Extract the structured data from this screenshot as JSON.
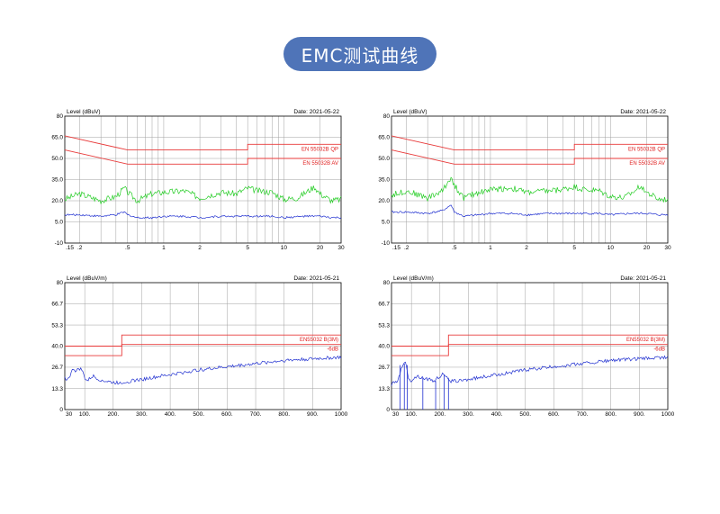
{
  "header": {
    "title": "EMC测试曲线"
  },
  "colors": {
    "pill": "#4f74b8",
    "limit": "#e83a3a",
    "qp_trace": "#22cc22",
    "av_trace": "#1f2fd0",
    "grid": "#a0a0a0"
  },
  "chart_data": [
    {
      "type": "line",
      "ylabel": "Level (dBuV)",
      "date": "Date: 2021-05-22",
      "x_scale": "log",
      "xlim": [
        0.15,
        30
      ],
      "ylim": [
        -10,
        80
      ],
      "yticks": [
        "80",
        "65.0",
        "50.0",
        "35.0",
        "20.0",
        "5.0",
        "-10"
      ],
      "ytick_values": [
        80,
        65,
        50,
        35,
        20,
        5,
        -10
      ],
      "xticks": [
        ".15",
        ".2",
        ".5",
        "1",
        "2",
        "5",
        "10",
        "20",
        "30"
      ],
      "xtick_values": [
        0.15,
        0.2,
        0.5,
        1,
        2,
        5,
        10,
        20,
        30
      ],
      "limits": [
        {
          "name": "EN 55032B QP",
          "x": [
            0.15,
            0.5,
            5,
            5,
            30
          ],
          "y": [
            66,
            56,
            56,
            60,
            60
          ]
        },
        {
          "name": "EN 55032B AV",
          "x": [
            0.15,
            0.5,
            5,
            5,
            30
          ],
          "y": [
            56,
            46,
            46,
            50,
            50
          ]
        }
      ],
      "series": [
        {
          "x": [
            0.15,
            0.2,
            0.3,
            0.4,
            0.47,
            0.5,
            0.6,
            0.8,
            1,
            1.5,
            2,
            3,
            4,
            5,
            6,
            8,
            10,
            13,
            16,
            18,
            20,
            25,
            30
          ],
          "y": [
            21,
            25,
            20,
            23,
            29,
            26,
            20,
            25,
            26,
            27,
            22,
            26,
            25,
            29,
            27,
            26,
            21,
            22,
            27,
            30,
            25,
            20,
            21
          ]
        },
        {
          "x": [
            0.15,
            0.2,
            0.3,
            0.4,
            0.47,
            0.5,
            0.6,
            0.8,
            1,
            1.5,
            2,
            3,
            5,
            8,
            10,
            15,
            20,
            25,
            30
          ],
          "y": [
            10,
            10,
            9,
            10,
            12,
            10,
            8,
            8,
            9,
            9,
            8,
            9,
            9,
            9,
            8,
            9,
            9,
            8,
            8
          ]
        }
      ]
    },
    {
      "type": "line",
      "ylabel": "Level (dBuV)",
      "date": "Date: 2021-05-22",
      "x_scale": "log",
      "xlim": [
        0.15,
        30
      ],
      "ylim": [
        -10,
        80
      ],
      "yticks": [
        "80",
        "65.0",
        "50.0",
        "35.0",
        "20.0",
        "5.0",
        "-10"
      ],
      "ytick_values": [
        80,
        65,
        50,
        35,
        20,
        5,
        -10
      ],
      "xticks": [
        ".15",
        ".2",
        ".5",
        "1",
        "2",
        "5",
        "10",
        "20",
        "30"
      ],
      "xtick_values": [
        0.15,
        0.2,
        0.5,
        1,
        2,
        5,
        10,
        20,
        30
      ],
      "limits": [
        {
          "name": "EN 55032B QP",
          "x": [
            0.15,
            0.5,
            5,
            5,
            30
          ],
          "y": [
            66,
            56,
            56,
            60,
            60
          ]
        },
        {
          "name": "EN 55032B AV",
          "x": [
            0.15,
            0.5,
            5,
            5,
            30
          ],
          "y": [
            56,
            46,
            46,
            50,
            50
          ]
        }
      ],
      "series": [
        {
          "x": [
            0.15,
            0.2,
            0.3,
            0.4,
            0.47,
            0.5,
            0.6,
            0.8,
            1,
            1.5,
            2,
            3,
            4,
            5,
            6,
            8,
            10,
            13,
            16,
            18,
            20,
            25,
            30
          ],
          "y": [
            24,
            27,
            22,
            27,
            37,
            31,
            22,
            26,
            28,
            29,
            26,
            27,
            28,
            30,
            28,
            27,
            23,
            22,
            27,
            31,
            26,
            21,
            21
          ]
        },
        {
          "x": [
            0.15,
            0.2,
            0.3,
            0.4,
            0.47,
            0.5,
            0.6,
            0.8,
            1,
            1.5,
            2,
            3,
            5,
            8,
            10,
            15,
            20,
            25,
            30
          ],
          "y": [
            12,
            12,
            11,
            13,
            17,
            12,
            9,
            10,
            11,
            11,
            10,
            11,
            11,
            11,
            10,
            11,
            11,
            10,
            10
          ]
        }
      ]
    },
    {
      "type": "line",
      "ylabel": "Level (dBuV/m)",
      "date": "Date: 2021-05-21",
      "x_scale": "linear",
      "xlim": [
        30,
        1000
      ],
      "ylim": [
        0,
        80
      ],
      "yticks": [
        "80",
        "66.7",
        "53.3",
        "40.0",
        "26.7",
        "13.3",
        "0"
      ],
      "ytick_values": [
        80,
        66.7,
        53.3,
        40,
        26.7,
        13.3,
        0
      ],
      "xticks": [
        "30",
        "100.",
        "200.",
        "300.",
        "400.",
        "500.",
        "600.",
        "700.",
        "800.",
        "900.",
        "1000"
      ],
      "xtick_values": [
        30,
        100,
        200,
        300,
        400,
        500,
        600,
        700,
        800,
        900,
        1000
      ],
      "limits": [
        {
          "name": "EN55032 B(3M)",
          "x": [
            30,
            230,
            230,
            1000
          ],
          "y": [
            40,
            40,
            47,
            47
          ]
        },
        {
          "name": "-6dB",
          "x": [
            30,
            230,
            230,
            1000
          ],
          "y": [
            34,
            34,
            41,
            41
          ]
        }
      ],
      "series": [
        {
          "x": [
            30,
            40,
            50,
            60,
            70,
            80,
            90,
            100,
            110,
            120,
            130,
            150,
            170,
            200,
            230,
            260,
            300,
            400,
            500,
            600,
            700,
            800,
            900,
            1000
          ],
          "y": [
            20,
            19,
            22,
            26,
            24,
            26,
            25,
            20,
            18,
            20,
            21,
            19,
            18,
            17,
            17,
            18,
            19,
            22,
            25,
            27,
            29,
            31,
            32,
            33
          ]
        }
      ]
    },
    {
      "type": "line",
      "ylabel": "Level (dBuV/m)",
      "date": "Date: 2021-05-21",
      "x_scale": "linear",
      "xlim": [
        30,
        1000
      ],
      "ylim": [
        0,
        80
      ],
      "yticks": [
        "80",
        "66.7",
        "53.3",
        "40.0",
        "26.7",
        "13.3",
        "0"
      ],
      "ytick_values": [
        80,
        66.7,
        53.3,
        40,
        26.7,
        13.3,
        0
      ],
      "xticks": [
        "30",
        "100.",
        "200.",
        "300.",
        "400.",
        "500.",
        "600.",
        "700.",
        "800.",
        "900.",
        "1000"
      ],
      "xtick_values": [
        30,
        100,
        200,
        300,
        400,
        500,
        600,
        700,
        800,
        900,
        1000
      ],
      "limits": [
        {
          "name": "EN55032 B(3M)",
          "x": [
            30,
            230,
            230,
            1000
          ],
          "y": [
            40,
            40,
            47,
            47
          ]
        },
        {
          "name": "-6dB",
          "x": [
            30,
            230,
            230,
            1000
          ],
          "y": [
            34,
            34,
            41,
            41
          ]
        }
      ],
      "series": [
        {
          "x": [
            30,
            40,
            50,
            60,
            70,
            80,
            90,
            100,
            110,
            120,
            140,
            160,
            180,
            200,
            215,
            230,
            260,
            300,
            400,
            500,
            600,
            700,
            800,
            900,
            1000
          ],
          "y": [
            16,
            17,
            18,
            23,
            29,
            29,
            20,
            18,
            20,
            21,
            20,
            19,
            18,
            21,
            23,
            18,
            18,
            19,
            22,
            25,
            27,
            29,
            31,
            32,
            33
          ]
        }
      ],
      "markers": {
        "x": [
          60,
          75,
          85,
          140,
          185,
          215,
          230
        ],
        "y": [
          28,
          29,
          28,
          20,
          18,
          22,
          20
        ]
      }
    }
  ]
}
